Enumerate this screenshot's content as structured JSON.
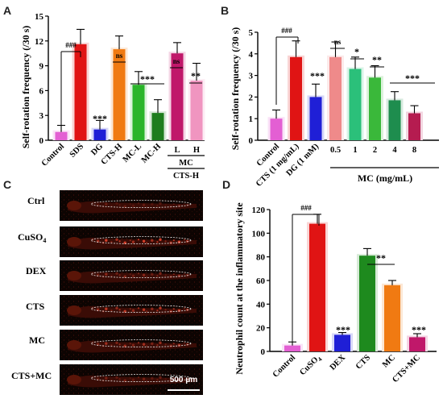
{
  "panels": {
    "A": "A",
    "B": "B",
    "C": "C",
    "D": "D"
  },
  "chart_data": [
    {
      "id": "A",
      "type": "bar",
      "ylabel": "Self-rotation frequency (/30 s)",
      "ylim": [
        0,
        15
      ],
      "yticks": [
        "0",
        "3",
        "6",
        "9",
        "12",
        "15"
      ],
      "categories": [
        "Control",
        "SDS",
        "DG",
        "CTS-H",
        "MC-L",
        "MC-H",
        "L",
        "H"
      ],
      "values": [
        1.0,
        11.6,
        1.3,
        11.0,
        6.7,
        3.3,
        10.5,
        7.2
      ],
      "errors": [
        0.8,
        1.8,
        1.1,
        1.6,
        1.6,
        1.6,
        1.3,
        2.1
      ],
      "colors": [
        "#e35fd3",
        "#e01414",
        "#1f1fd6",
        "#f07a12",
        "#2ab52a",
        "#1e7d1e",
        "#c0186a",
        "#f095c0"
      ],
      "group_labels": [
        "MC",
        "CTS-H"
      ],
      "sig": {
        "ctrl_vs_sds": "###",
        "dg": "***",
        "ctsh": "ns",
        "mc": "***",
        "l": "ns",
        "h": "**"
      }
    },
    {
      "id": "B",
      "type": "bar",
      "ylabel": "Self-rotation frequency (/30 s)",
      "ylim": [
        0,
        5
      ],
      "yticks": [
        "0",
        "1",
        "2",
        "3",
        "4",
        "5"
      ],
      "categories": [
        "Control",
        "CTS (1 mg/mL)",
        "DG (1 mM)",
        "0.5",
        "1",
        "2",
        "4",
        "8"
      ],
      "values": [
        1.0,
        3.85,
        2.0,
        3.85,
        3.3,
        2.9,
        1.85,
        1.25
      ],
      "errors": [
        0.4,
        0.75,
        0.6,
        0.7,
        0.55,
        0.55,
        0.4,
        0.35
      ],
      "colors": [
        "#e35fd3",
        "#e01414",
        "#1f1fd6",
        "#ef8a8a",
        "#2bc07a",
        "#3ab83a",
        "#1e8d4e",
        "#b51c50"
      ],
      "group_label": "MC (mg/mL)",
      "sig": {
        "ctrl_vs_cts": "###",
        "dg": "***",
        "c05": "ns",
        "c1": "*",
        "c2": "**",
        "c48": "***"
      }
    },
    {
      "id": "D",
      "type": "bar",
      "ylabel": "Neutrophil count at the inflammatory site",
      "ylim": [
        0,
        120
      ],
      "yticks": [
        "0",
        "20",
        "40",
        "60",
        "80",
        "100",
        "120"
      ],
      "categories": [
        "Control",
        "CuSO4",
        "DEX",
        "CTS",
        "MC",
        "CTS+MC"
      ],
      "cat_display": [
        "Control",
        "CuSO",
        "DEX",
        "CTS",
        "MC",
        "CTS+MC"
      ],
      "values": [
        5,
        108,
        14,
        81,
        56,
        12
      ],
      "errors": [
        3,
        8,
        2,
        6,
        4,
        3
      ],
      "colors": [
        "#e35fd3",
        "#e01414",
        "#1f1fd6",
        "#1e8a1e",
        "#f07a12",
        "#c0186a"
      ],
      "sig": {
        "ctrl_vs_cuso4": "###",
        "dex": "***",
        "cts_mc": "**",
        "ctsmc": "***"
      }
    }
  ],
  "images": {
    "labels": [
      "Ctrl",
      "CuSO",
      "DEX",
      "CTS",
      "MC",
      "CTS+MC"
    ],
    "scale_bar": "500 μm"
  }
}
